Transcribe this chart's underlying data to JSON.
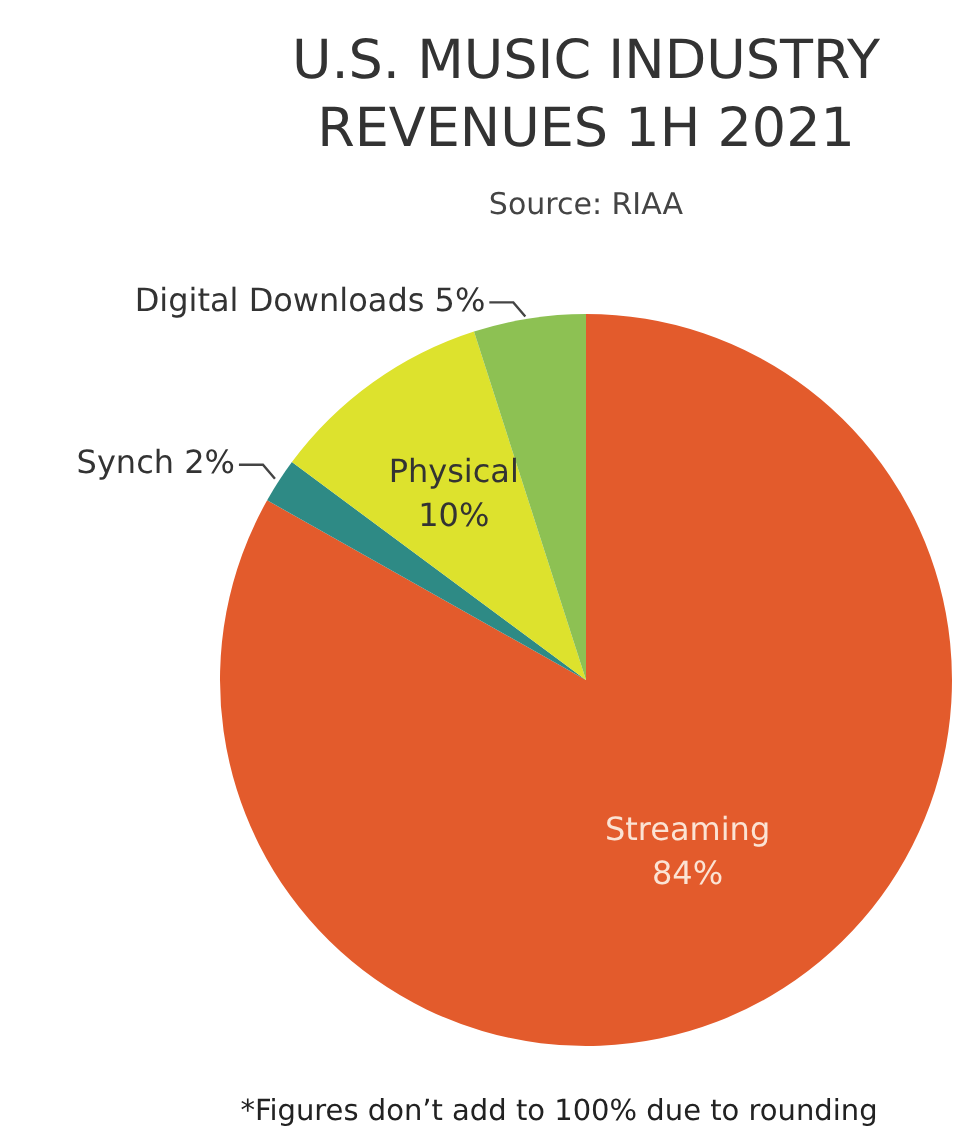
{
  "chart_data": {
    "type": "pie",
    "title": "U.S. MUSIC INDUSTRY\nREVENUES 1H 2021",
    "subtitle": "Source: RIAA",
    "categories": [
      "Streaming",
      "Synch",
      "Physical",
      "Digital Downloads"
    ],
    "values": [
      84,
      2,
      10,
      5
    ],
    "colors": [
      "#e35b2c",
      "#2e8a85",
      "#dde22d",
      "#8dc153"
    ],
    "value_labels": [
      "84%",
      "2%",
      "10%",
      "5%"
    ],
    "legend": false,
    "annotations": [
      "*Figures don’t add to 100% due to rounding"
    ]
  }
}
